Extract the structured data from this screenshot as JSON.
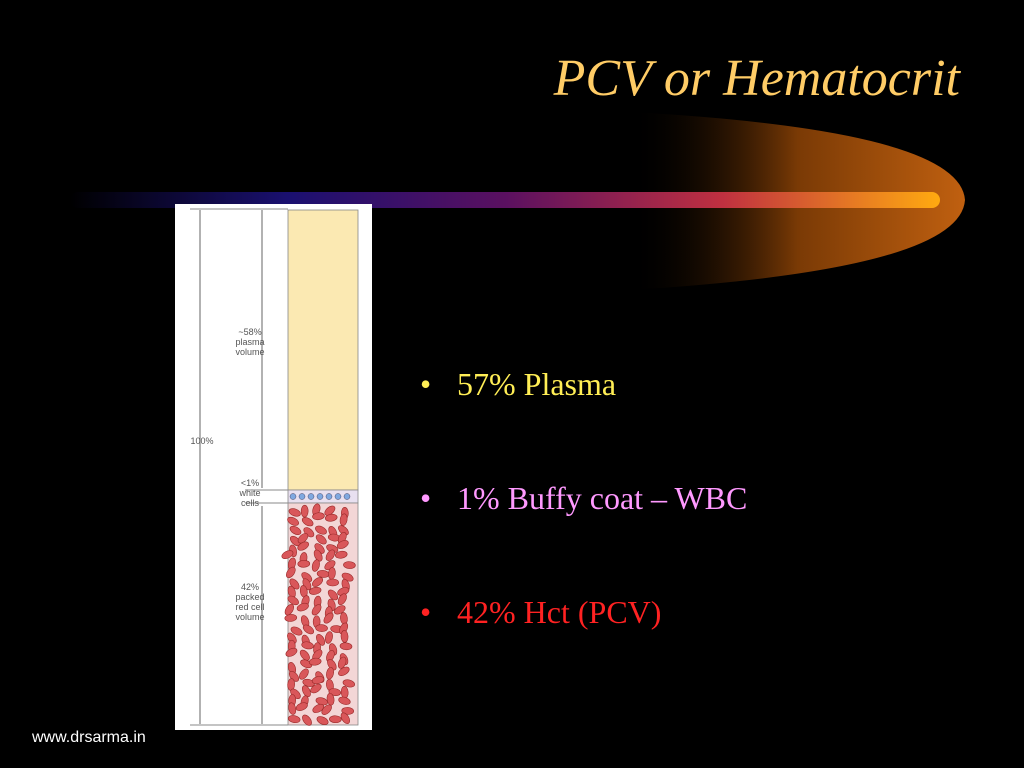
{
  "title": "PCV or Hematocrit",
  "figure": {
    "plasma_label": [
      "~58%",
      "plasma",
      "volume"
    ],
    "total_label": "100%",
    "white_label": [
      "<1%",
      "white",
      "cells"
    ],
    "red_label": [
      "42%",
      "packed",
      "red cell",
      "volume"
    ]
  },
  "bullets": [
    "57% Plasma",
    "1% Buffy coat – WBC",
    "42% Hct (PCV)"
  ],
  "footer": "www.drsarma.in"
}
